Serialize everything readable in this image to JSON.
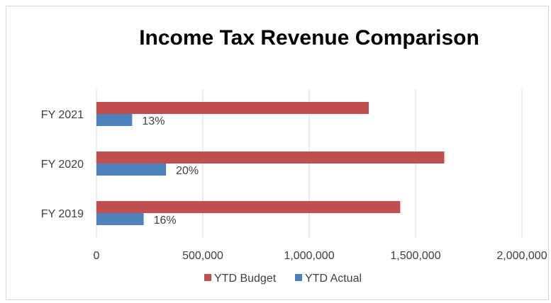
{
  "chart_data": {
    "type": "bar",
    "orientation": "horizontal",
    "title": "Income Tax Revenue Comparison",
    "categories": [
      "FY 2021",
      "FY 2020",
      "FY 2019"
    ],
    "series": [
      {
        "name": "YTD Budget",
        "color": "#c0504d",
        "values": [
          1280000,
          1635000,
          1428000
        ]
      },
      {
        "name": "YTD Actual",
        "color": "#4f81bd",
        "values": [
          168000,
          327000,
          222000
        ],
        "labels": [
          "13%",
          "20%",
          "16%"
        ]
      }
    ],
    "xlim": [
      0,
      2000000
    ],
    "xticks": [
      0,
      500000,
      1000000,
      1500000,
      2000000
    ],
    "xtick_labels": [
      "0",
      "500,000",
      "1,000,000",
      "1,500,000",
      "2,000,000"
    ],
    "grid": true,
    "legend_position": "bottom"
  }
}
